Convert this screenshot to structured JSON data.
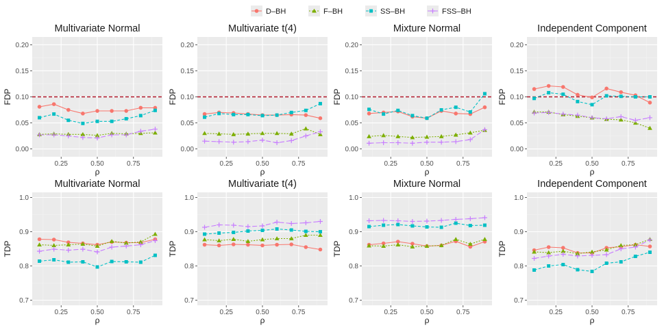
{
  "legend": {
    "items": [
      {
        "name": "D–BH",
        "color": "#F8766D",
        "marker": "circle",
        "dash": "solid"
      },
      {
        "name": "F–BH",
        "color": "#7CAE00",
        "marker": "triangle",
        "dash": "dotted"
      },
      {
        "name": "SS–BH",
        "color": "#00BFC4",
        "marker": "square",
        "dash": "dashed"
      },
      {
        "name": "FSS–BH",
        "color": "#C77CFF",
        "marker": "plus",
        "dash": "longdash"
      }
    ]
  },
  "chart_data": [
    {
      "type": "line",
      "title": "Multivariate Normal",
      "xlabel": "ρ",
      "ylabel": "FDP",
      "xlim": [
        0.05,
        0.95
      ],
      "ylim": [
        -0.015,
        0.215
      ],
      "xticks": [
        0.25,
        0.5,
        0.75
      ],
      "xticklabels": [
        "0.25",
        "0.50",
        "0.75"
      ],
      "yticks": [
        0,
        0.05,
        0.1,
        0.15,
        0.2
      ],
      "yticklabels": [
        "0.00",
        "0.05",
        "0.10",
        "0.15",
        "0.20"
      ],
      "hline": 0.1,
      "x": [
        0.1,
        0.2,
        0.3,
        0.4,
        0.5,
        0.6,
        0.7,
        0.8,
        0.9
      ],
      "series": [
        {
          "name": "D–BH",
          "values": [
            0.081,
            0.086,
            0.075,
            0.068,
            0.073,
            0.073,
            0.073,
            0.079,
            0.079
          ]
        },
        {
          "name": "F–BH",
          "values": [
            0.028,
            0.029,
            0.028,
            0.028,
            0.026,
            0.03,
            0.029,
            0.03,
            0.031
          ]
        },
        {
          "name": "SS–BH",
          "values": [
            0.06,
            0.067,
            0.055,
            0.049,
            0.053,
            0.053,
            0.058,
            0.064,
            0.074
          ]
        },
        {
          "name": "FSS–BH",
          "values": [
            0.027,
            0.027,
            0.025,
            0.022,
            0.021,
            0.027,
            0.027,
            0.034,
            0.038
          ]
        }
      ]
    },
    {
      "type": "line",
      "title": "Multivariate t(4)",
      "xlabel": "ρ",
      "ylabel": "FDP",
      "xlim": [
        0.05,
        0.95
      ],
      "ylim": [
        -0.015,
        0.215
      ],
      "xticks": [
        0.25,
        0.5,
        0.75
      ],
      "xticklabels": [
        "0.25",
        "0.50",
        "0.75"
      ],
      "yticks": [
        0,
        0.05,
        0.1,
        0.15,
        0.2
      ],
      "yticklabels": [
        "0.00",
        "0.05",
        "0.10",
        "0.15",
        "0.20"
      ],
      "hline": 0.1,
      "x": [
        0.1,
        0.2,
        0.3,
        0.4,
        0.5,
        0.6,
        0.7,
        0.8,
        0.9
      ],
      "series": [
        {
          "name": "D–BH",
          "values": [
            0.067,
            0.07,
            0.069,
            0.067,
            0.065,
            0.065,
            0.066,
            0.065,
            0.059
          ]
        },
        {
          "name": "F–BH",
          "values": [
            0.03,
            0.029,
            0.028,
            0.029,
            0.03,
            0.03,
            0.029,
            0.039,
            0.028
          ]
        },
        {
          "name": "SS–BH",
          "values": [
            0.061,
            0.068,
            0.066,
            0.066,
            0.064,
            0.065,
            0.07,
            0.074,
            0.087
          ]
        },
        {
          "name": "FSS–BH",
          "values": [
            0.015,
            0.014,
            0.013,
            0.014,
            0.017,
            0.012,
            0.016,
            0.025,
            0.033
          ]
        }
      ]
    },
    {
      "type": "line",
      "title": "Mixture Normal",
      "xlabel": "ρ",
      "ylabel": "FDP",
      "xlim": [
        0.05,
        0.95
      ],
      "ylim": [
        -0.015,
        0.215
      ],
      "xticks": [
        0.25,
        0.5,
        0.75
      ],
      "xticklabels": [
        "0.25",
        "0.50",
        "0.75"
      ],
      "yticks": [
        0,
        0.05,
        0.1,
        0.15,
        0.2
      ],
      "yticklabels": [
        "0.00",
        "0.05",
        "0.10",
        "0.15",
        "0.20"
      ],
      "hline": 0.1,
      "x": [
        0.1,
        0.2,
        0.3,
        0.4,
        0.5,
        0.6,
        0.7,
        0.8,
        0.9
      ],
      "series": [
        {
          "name": "D–BH",
          "values": [
            0.068,
            0.07,
            0.072,
            0.062,
            0.059,
            0.073,
            0.068,
            0.067,
            0.08
          ]
        },
        {
          "name": "F–BH",
          "values": [
            0.024,
            0.026,
            0.024,
            0.022,
            0.023,
            0.024,
            0.027,
            0.031,
            0.036
          ]
        },
        {
          "name": "SS–BH",
          "values": [
            0.076,
            0.067,
            0.074,
            0.064,
            0.059,
            0.075,
            0.08,
            0.071,
            0.106
          ]
        },
        {
          "name": "FSS–BH",
          "values": [
            0.011,
            0.012,
            0.012,
            0.011,
            0.013,
            0.013,
            0.014,
            0.018,
            0.037
          ]
        }
      ]
    },
    {
      "type": "line",
      "title": "Independent Component",
      "xlabel": "ρ",
      "ylabel": "FDP",
      "xlim": [
        0.05,
        0.95
      ],
      "ylim": [
        -0.015,
        0.215
      ],
      "xticks": [
        0.25,
        0.5,
        0.75
      ],
      "xticklabels": [
        "0.25",
        "0.50",
        "0.75"
      ],
      "yticks": [
        0,
        0.05,
        0.1,
        0.15,
        0.2
      ],
      "yticklabels": [
        "0.00",
        "0.05",
        "0.10",
        "0.15",
        "0.20"
      ],
      "hline": 0.1,
      "x": [
        0.1,
        0.2,
        0.3,
        0.4,
        0.5,
        0.6,
        0.7,
        0.8,
        0.9
      ],
      "series": [
        {
          "name": "D–BH",
          "values": [
            0.115,
            0.121,
            0.119,
            0.104,
            0.099,
            0.116,
            0.109,
            0.103,
            0.089
          ]
        },
        {
          "name": "F–BH",
          "values": [
            0.071,
            0.071,
            0.066,
            0.063,
            0.06,
            0.057,
            0.056,
            0.05,
            0.04
          ]
        },
        {
          "name": "SS–BH",
          "values": [
            0.097,
            0.108,
            0.105,
            0.091,
            0.085,
            0.102,
            0.101,
            0.1,
            0.1
          ]
        },
        {
          "name": "FSS–BH",
          "values": [
            0.069,
            0.07,
            0.067,
            0.065,
            0.06,
            0.058,
            0.062,
            0.055,
            0.06
          ]
        }
      ]
    },
    {
      "type": "line",
      "title": "Multivariate Normal",
      "xlabel": "ρ",
      "ylabel": "TDP",
      "xlim": [
        0.05,
        0.95
      ],
      "ylim": [
        0.685,
        1.015
      ],
      "xticks": [
        0.25,
        0.5,
        0.75
      ],
      "xticklabels": [
        "0.25",
        "0.50",
        "0.75"
      ],
      "yticks": [
        0.7,
        0.8,
        0.9,
        1.0
      ],
      "yticklabels": [
        "0.7",
        "0.8",
        "0.9",
        "1.0"
      ],
      "x": [
        0.1,
        0.2,
        0.3,
        0.4,
        0.5,
        0.6,
        0.7,
        0.8,
        0.9
      ],
      "series": [
        {
          "name": "D–BH",
          "values": [
            0.878,
            0.877,
            0.869,
            0.866,
            0.862,
            0.87,
            0.868,
            0.868,
            0.878
          ]
        },
        {
          "name": "F–BH",
          "values": [
            0.862,
            0.86,
            0.862,
            0.864,
            0.858,
            0.872,
            0.867,
            0.87,
            0.893
          ]
        },
        {
          "name": "SS–BH",
          "values": [
            0.814,
            0.818,
            0.811,
            0.812,
            0.797,
            0.813,
            0.812,
            0.811,
            0.831
          ]
        },
        {
          "name": "FSS–BH",
          "values": [
            0.843,
            0.849,
            0.846,
            0.849,
            0.841,
            0.855,
            0.858,
            0.862,
            0.874
          ]
        }
      ]
    },
    {
      "type": "line",
      "title": "Multivariate t(4)",
      "xlabel": "ρ",
      "ylabel": "TDP",
      "xlim": [
        0.05,
        0.95
      ],
      "ylim": [
        0.685,
        1.015
      ],
      "xticks": [
        0.25,
        0.5,
        0.75
      ],
      "xticklabels": [
        "0.25",
        "0.50",
        "0.75"
      ],
      "yticks": [
        0.7,
        0.8,
        0.9,
        1.0
      ],
      "yticklabels": [
        "0.7",
        "0.8",
        "0.9",
        "1.0"
      ],
      "x": [
        0.1,
        0.2,
        0.3,
        0.4,
        0.5,
        0.6,
        0.7,
        0.8,
        0.9
      ],
      "series": [
        {
          "name": "D–BH",
          "values": [
            0.862,
            0.86,
            0.863,
            0.862,
            0.86,
            0.862,
            0.863,
            0.855,
            0.848
          ]
        },
        {
          "name": "F–BH",
          "values": [
            0.877,
            0.874,
            0.878,
            0.872,
            0.877,
            0.88,
            0.88,
            0.89,
            0.89
          ]
        },
        {
          "name": "SS–BH",
          "values": [
            0.893,
            0.896,
            0.898,
            0.902,
            0.904,
            0.908,
            0.905,
            0.901,
            0.9
          ]
        },
        {
          "name": "FSS–BH",
          "values": [
            0.913,
            0.92,
            0.919,
            0.915,
            0.917,
            0.928,
            0.924,
            0.926,
            0.93
          ]
        }
      ]
    },
    {
      "type": "line",
      "title": "Mixture Normal",
      "xlabel": "ρ",
      "ylabel": "TDP",
      "xlim": [
        0.05,
        0.95
      ],
      "ylim": [
        0.685,
        1.015
      ],
      "xticks": [
        0.25,
        0.5,
        0.75
      ],
      "xticklabels": [
        "0.25",
        "0.50",
        "0.75"
      ],
      "yticks": [
        0.7,
        0.8,
        0.9,
        1.0
      ],
      "yticklabels": [
        "0.7",
        "0.8",
        "0.9",
        "1.0"
      ],
      "x": [
        0.1,
        0.2,
        0.3,
        0.4,
        0.5,
        0.6,
        0.7,
        0.8,
        0.9
      ],
      "series": [
        {
          "name": "D–BH",
          "values": [
            0.862,
            0.866,
            0.871,
            0.865,
            0.858,
            0.86,
            0.872,
            0.856,
            0.871
          ]
        },
        {
          "name": "F–BH",
          "values": [
            0.859,
            0.858,
            0.862,
            0.856,
            0.858,
            0.86,
            0.878,
            0.864,
            0.878
          ]
        },
        {
          "name": "SS–BH",
          "values": [
            0.915,
            0.919,
            0.921,
            0.917,
            0.914,
            0.913,
            0.925,
            0.918,
            0.919
          ]
        },
        {
          "name": "FSS–BH",
          "values": [
            0.932,
            0.933,
            0.932,
            0.93,
            0.931,
            0.933,
            0.936,
            0.938,
            0.941
          ]
        }
      ]
    },
    {
      "type": "line",
      "title": "Independent Component",
      "xlabel": "ρ",
      "ylabel": "TDP",
      "xlim": [
        0.05,
        0.95
      ],
      "ylim": [
        0.685,
        1.015
      ],
      "xticks": [
        0.25,
        0.5,
        0.75
      ],
      "xticklabels": [
        "0.25",
        "0.50",
        "0.75"
      ],
      "yticks": [
        0.7,
        0.8,
        0.9,
        1.0
      ],
      "yticklabels": [
        "0.7",
        "0.8",
        "0.9",
        "1.0"
      ],
      "x": [
        0.1,
        0.2,
        0.3,
        0.4,
        0.5,
        0.6,
        0.7,
        0.8,
        0.9
      ],
      "series": [
        {
          "name": "D–BH",
          "values": [
            0.846,
            0.855,
            0.853,
            0.838,
            0.838,
            0.853,
            0.856,
            0.862,
            0.857
          ]
        },
        {
          "name": "F–BH",
          "values": [
            0.841,
            0.839,
            0.843,
            0.836,
            0.841,
            0.847,
            0.86,
            0.862,
            0.878
          ]
        },
        {
          "name": "SS–BH",
          "values": [
            0.788,
            0.8,
            0.804,
            0.789,
            0.784,
            0.808,
            0.812,
            0.828,
            0.84
          ]
        },
        {
          "name": "FSS–BH",
          "values": [
            0.822,
            0.829,
            0.834,
            0.829,
            0.831,
            0.833,
            0.85,
            0.855,
            0.876
          ]
        }
      ]
    }
  ]
}
